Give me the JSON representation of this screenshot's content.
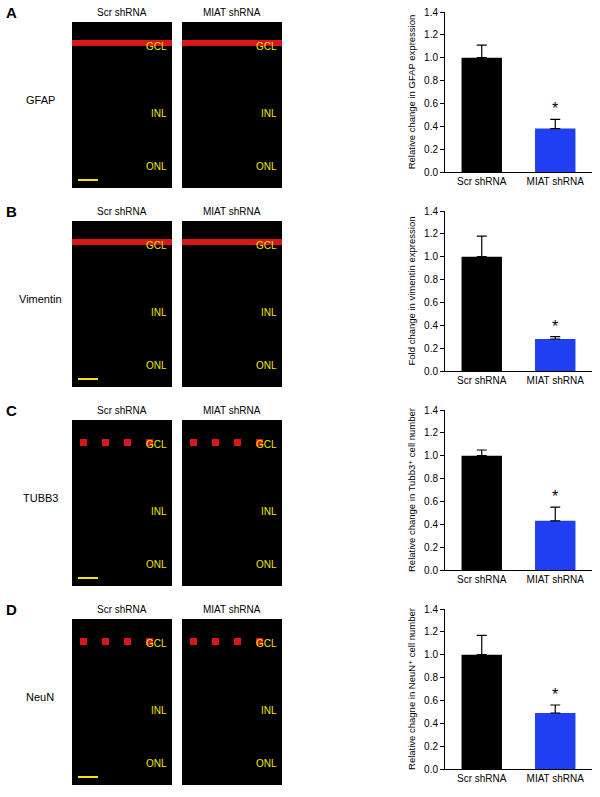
{
  "chart_data": [
    {
      "type": "bar",
      "panel": "A",
      "stain": "GFAP",
      "images": [
        "Scr shRNA",
        "MIAT shRNA"
      ],
      "layers": [
        "GCL",
        "INL",
        "ONL"
      ],
      "y_label": "Relative change in GFAP expression",
      "categories": [
        "Scr shRNA",
        "MIAT shRNA"
      ],
      "values": [
        1.0,
        0.38
      ],
      "errors": [
        0.11,
        0.08
      ],
      "colors": [
        "#000000",
        "#1f3ff0"
      ],
      "ylim": [
        0,
        1.4
      ],
      "yticks": [
        {
          "value": 0,
          "label": "0.0"
        },
        {
          "value": 0.2,
          "label": "0.2"
        },
        {
          "value": 0.4,
          "label": "0.4"
        },
        {
          "value": 0.6,
          "label": "0.6"
        },
        {
          "value": 0.8,
          "label": "0.8"
        },
        {
          "value": 1,
          "label": "1.0"
        },
        {
          "value": 1.2,
          "label": "1.2"
        },
        {
          "value": 1.4,
          "label": "1.4"
        }
      ],
      "annotations": [
        {
          "category": "MIAT shRNA",
          "text": "*"
        }
      ]
    },
    {
      "type": "bar",
      "panel": "B",
      "stain": "Vimentin",
      "images": [
        "Scr shRNA",
        "MIAT shRNA"
      ],
      "layers": [
        "GCL",
        "INL",
        "ONL"
      ],
      "y_label": "Fold change in vimentin expression",
      "categories": [
        "Scr shRNA",
        "MIAT shRNA"
      ],
      "values": [
        1.0,
        0.28
      ],
      "errors": [
        0.18,
        0.02
      ],
      "colors": [
        "#000000",
        "#1f3ff0"
      ],
      "ylim": [
        0,
        1.4
      ],
      "yticks": [
        {
          "value": 0,
          "label": "0.0"
        },
        {
          "value": 0.2,
          "label": "0.2"
        },
        {
          "value": 0.4,
          "label": "0.4"
        },
        {
          "value": 0.6,
          "label": "0.6"
        },
        {
          "value": 0.8,
          "label": "0.8"
        },
        {
          "value": 1,
          "label": "1.0"
        },
        {
          "value": 1.2,
          "label": "1.2"
        },
        {
          "value": 1.4,
          "label": "1.4"
        }
      ],
      "annotations": [
        {
          "category": "MIAT shRNA",
          "text": "*"
        }
      ]
    },
    {
      "type": "bar",
      "panel": "C",
      "stain": "TUBB3",
      "images": [
        "Scr shRNA",
        "MIAT shRNA"
      ],
      "layers": [
        "GCL",
        "INL",
        "ONL"
      ],
      "y_label": "Relative change in Tubb3⁺ cell number",
      "categories": [
        "Scr shRNA",
        "MIAT shRNA"
      ],
      "values": [
        1.0,
        0.43
      ],
      "errors": [
        0.05,
        0.12
      ],
      "colors": [
        "#000000",
        "#1f3ff0"
      ],
      "ylim": [
        0,
        1.4
      ],
      "yticks": [
        {
          "value": 0,
          "label": "0.0"
        },
        {
          "value": 0.2,
          "label": "0.2"
        },
        {
          "value": 0.4,
          "label": "0.4"
        },
        {
          "value": 0.6,
          "label": "0.6"
        },
        {
          "value": 0.8,
          "label": "0.8"
        },
        {
          "value": 1,
          "label": "1.0"
        },
        {
          "value": 1.2,
          "label": "1.2"
        },
        {
          "value": 1.4,
          "label": "1.4"
        }
      ],
      "annotations": [
        {
          "category": "MIAT shRNA",
          "text": "*"
        }
      ]
    },
    {
      "type": "bar",
      "panel": "D",
      "stain": "NeuN",
      "images": [
        "Scr shRNA",
        "MIAT shRNA"
      ],
      "layers": [
        "GCL",
        "INL",
        "ONL"
      ],
      "y_label": "Relative chagne in NeuN⁺ cell number",
      "categories": [
        "Scr shRNA",
        "MIAT shRNA"
      ],
      "values": [
        1.0,
        0.49
      ],
      "errors": [
        0.17,
        0.07
      ],
      "colors": [
        "#000000",
        "#1f3ff0"
      ],
      "ylim": [
        0,
        1.4
      ],
      "yticks": [
        {
          "value": 0,
          "label": "0.0"
        },
        {
          "value": 0.2,
          "label": "0.2"
        },
        {
          "value": 0.4,
          "label": "0.4"
        },
        {
          "value": 0.6,
          "label": "0.6"
        },
        {
          "value": 0.8,
          "label": "0.8"
        },
        {
          "value": 1,
          "label": "1.0"
        },
        {
          "value": 1.2,
          "label": "1.2"
        },
        {
          "value": 1.4,
          "label": "1.4"
        }
      ],
      "annotations": [
        {
          "category": "MIAT shRNA",
          "text": "*"
        }
      ]
    }
  ]
}
